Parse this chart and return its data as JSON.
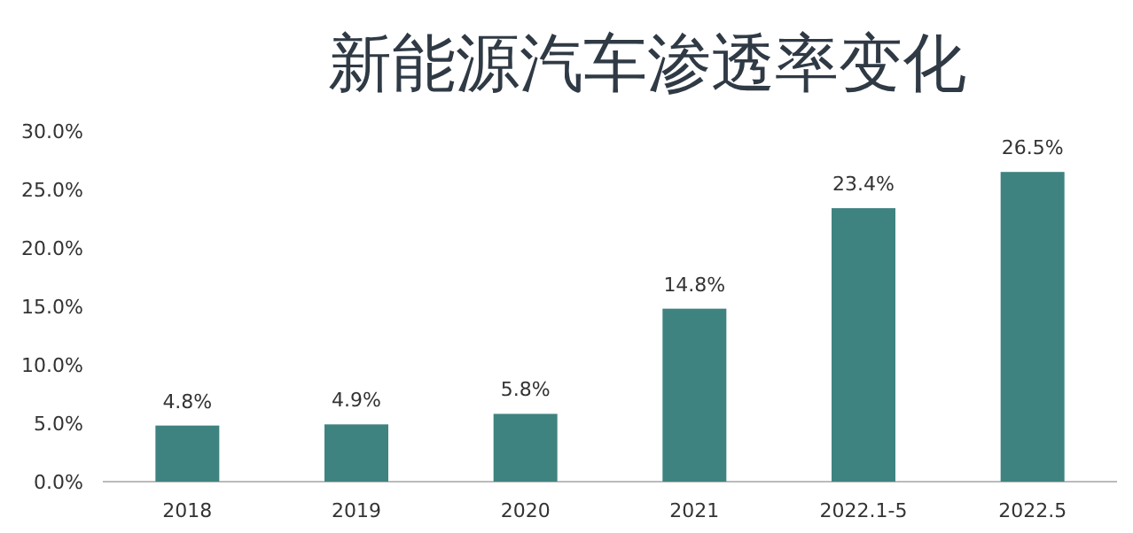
{
  "chart_data": {
    "type": "bar",
    "title": "新能源汽车渗透率变化",
    "categories": [
      "2018",
      "2019",
      "2020",
      "2021",
      "2022.1-5",
      "2022.5"
    ],
    "values": [
      4.8,
      4.9,
      5.8,
      14.8,
      23.4,
      26.5
    ],
    "value_labels": [
      "4.8%",
      "4.9%",
      "5.8%",
      "14.8%",
      "23.4%",
      "26.5%"
    ],
    "color": "#3e8380",
    "ylim": [
      0,
      30
    ],
    "yticks": [
      {
        "value": 0,
        "label": "0.0%"
      },
      {
        "value": 5,
        "label": "5.0%"
      },
      {
        "value": 10,
        "label": "10.0%"
      },
      {
        "value": 15,
        "label": "15.0%"
      },
      {
        "value": 20,
        "label": "20.0%"
      },
      {
        "value": 25,
        "label": "25.0%"
      },
      {
        "value": 30,
        "label": "30.0%"
      }
    ],
    "grid": false
  }
}
